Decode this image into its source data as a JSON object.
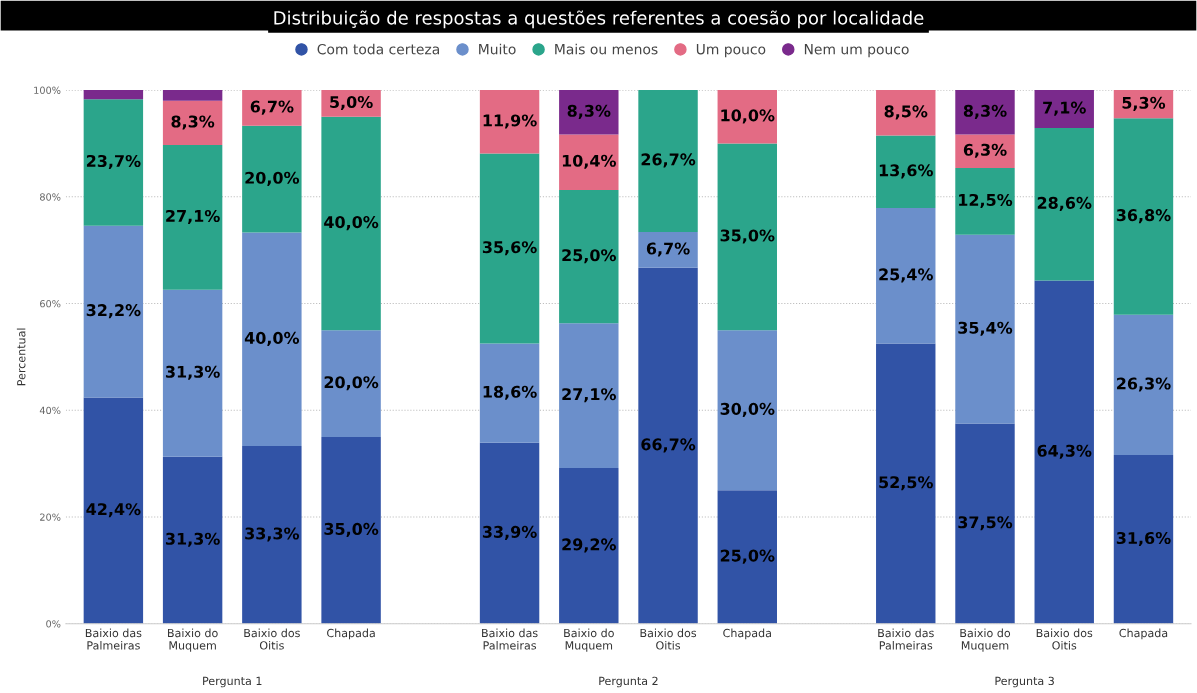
{
  "chart_data": {
    "type": "bar",
    "stacked": true,
    "title": "Distribuição de respostas a questões referentes a coesão por localidade",
    "ylabel": "Percentual",
    "categories": [
      "Baixio das\nPalmeiras",
      "Baixio do\nMuquem",
      "Baixio dos\nOitis",
      "Chapada",
      null,
      "Baixio das\nPalmeiras",
      "Baixio do\nMuquem",
      "Baixio dos\nOitis",
      "Chapada",
      null,
      "Baixio das\nPalmeiras",
      "Baixio do\nMuquem",
      "Baixio dos\nOitis",
      "Chapada"
    ],
    "series": [
      {
        "name": "Com toda certeza",
        "color": "#3153a6",
        "values": [
          42.4,
          31.3,
          33.3,
          35.0,
          null,
          33.9,
          29.2,
          66.7,
          25.0,
          null,
          52.5,
          37.5,
          64.3,
          31.6
        ],
        "value_labels": [
          "42,4%",
          "31,3%",
          "33,3%",
          "35,0%",
          null,
          "33,9%",
          "29,2%",
          "66,7%",
          "25,0%",
          null,
          "52,5%",
          "37,5%",
          "64,3%",
          "31,6%"
        ]
      },
      {
        "name": "Muito",
        "color": "#6b8fcb",
        "values": [
          32.2,
          31.3,
          40.0,
          20.0,
          null,
          18.6,
          27.1,
          6.7,
          30.0,
          null,
          25.4,
          35.4,
          null,
          26.3
        ],
        "value_labels": [
          "32,2%",
          "31,3%",
          "40,0%",
          "20,0%",
          null,
          "18,6%",
          "27,1%",
          "6,7%",
          "30,0%",
          null,
          "25,4%",
          "35,4%",
          null,
          "26,3%"
        ]
      },
      {
        "name": "Mais ou menos",
        "color": "#2ba58b",
        "values": [
          23.7,
          27.1,
          20.0,
          40.0,
          null,
          35.6,
          25.0,
          26.7,
          35.0,
          null,
          13.6,
          12.5,
          28.6,
          36.8
        ],
        "value_labels": [
          "23,7%",
          "27,1%",
          "20,0%",
          "40,0%",
          null,
          "35,6%",
          "25,0%",
          "26,7%",
          "35,0%",
          null,
          "13,6%",
          "12,5%",
          "28,6%",
          "36,8%"
        ]
      },
      {
        "name": "Um pouco",
        "color": "#e36b84",
        "values": [
          null,
          8.3,
          6.7,
          5.0,
          null,
          11.9,
          10.4,
          null,
          10.0,
          null,
          8.5,
          6.3,
          null,
          5.3
        ],
        "value_labels": [
          null,
          "8,3%",
          "6,7%",
          "5,0%",
          null,
          "11,9%",
          "10,4%",
          null,
          "10,0%",
          null,
          "8,5%",
          "6,3%",
          null,
          "5,3%"
        ]
      },
      {
        "name": "Nem um pouco",
        "color": "#7a2a8c",
        "values": [
          1.7,
          2.1,
          null,
          null,
          null,
          null,
          8.3,
          null,
          null,
          null,
          null,
          8.3,
          7.1,
          null
        ],
        "value_labels": [
          null,
          null,
          null,
          null,
          null,
          null,
          "8,3%",
          null,
          null,
          null,
          null,
          "8,3%",
          "7,1%",
          null
        ]
      }
    ],
    "ylim": [
      0,
      100
    ],
    "yticks": [
      {
        "value": 0,
        "label": "0%"
      },
      {
        "value": 20,
        "label": "20%"
      },
      {
        "value": 40,
        "label": "40%"
      },
      {
        "value": 60,
        "label": "60%"
      },
      {
        "value": 80,
        "label": "80%"
      },
      {
        "value": 100,
        "label": "100%"
      }
    ],
    "grid": "y",
    "legend": "top",
    "annotations": [
      "Pergunta 1",
      "Pergunta 2",
      "Pergunta 3"
    ]
  }
}
